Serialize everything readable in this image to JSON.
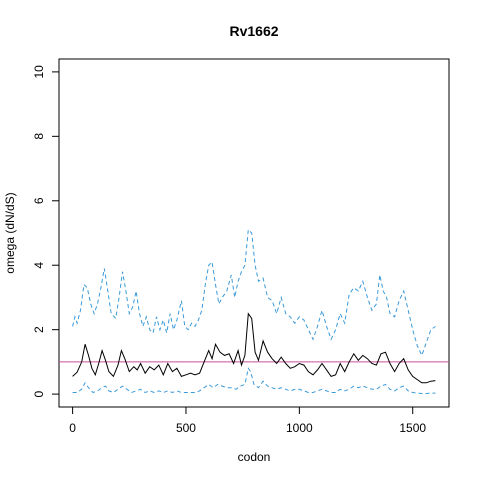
{
  "chart_data": {
    "type": "line",
    "title": "Rv1662",
    "xlabel": "codon",
    "ylabel": "omega (dN/dS)",
    "xlim": [
      -60,
      1660
    ],
    "ylim": [
      -0.4,
      10.4
    ],
    "x_ticks": [
      0,
      500,
      1000,
      1500
    ],
    "y_ticks": [
      0,
      2,
      4,
      6,
      8,
      10
    ],
    "grid": false,
    "reference_line": {
      "y": 1,
      "color": "#c8509b"
    },
    "series": [
      {
        "style": "solid",
        "color": "#000000",
        "points": [
          [
            0,
            0.55
          ],
          [
            20,
            0.68
          ],
          [
            40,
            1.0
          ],
          [
            55,
            1.55
          ],
          [
            70,
            1.2
          ],
          [
            85,
            0.8
          ],
          [
            100,
            0.6
          ],
          [
            115,
            0.95
          ],
          [
            130,
            1.35
          ],
          [
            145,
            1.05
          ],
          [
            160,
            0.7
          ],
          [
            180,
            0.55
          ],
          [
            200,
            0.9
          ],
          [
            215,
            1.35
          ],
          [
            230,
            1.1
          ],
          [
            250,
            0.7
          ],
          [
            270,
            0.85
          ],
          [
            285,
            0.75
          ],
          [
            300,
            0.95
          ],
          [
            320,
            0.65
          ],
          [
            340,
            0.85
          ],
          [
            360,
            0.75
          ],
          [
            380,
            0.9
          ],
          [
            400,
            0.6
          ],
          [
            420,
            0.95
          ],
          [
            440,
            0.7
          ],
          [
            460,
            0.8
          ],
          [
            480,
            0.55
          ],
          [
            500,
            0.6
          ],
          [
            520,
            0.65
          ],
          [
            540,
            0.6
          ],
          [
            560,
            0.65
          ],
          [
            580,
            1.0
          ],
          [
            600,
            1.35
          ],
          [
            615,
            1.1
          ],
          [
            630,
            1.55
          ],
          [
            650,
            1.3
          ],
          [
            670,
            1.2
          ],
          [
            690,
            1.25
          ],
          [
            710,
            0.95
          ],
          [
            730,
            1.35
          ],
          [
            745,
            0.9
          ],
          [
            760,
            1.2
          ],
          [
            775,
            2.5
          ],
          [
            790,
            2.35
          ],
          [
            805,
            1.3
          ],
          [
            820,
            1.05
          ],
          [
            840,
            1.65
          ],
          [
            860,
            1.3
          ],
          [
            880,
            1.1
          ],
          [
            900,
            0.95
          ],
          [
            920,
            1.15
          ],
          [
            940,
            0.95
          ],
          [
            960,
            0.8
          ],
          [
            980,
            0.85
          ],
          [
            1000,
            0.95
          ],
          [
            1020,
            0.9
          ],
          [
            1040,
            0.7
          ],
          [
            1060,
            0.6
          ],
          [
            1080,
            0.75
          ],
          [
            1100,
            0.95
          ],
          [
            1120,
            0.75
          ],
          [
            1140,
            0.55
          ],
          [
            1160,
            0.6
          ],
          [
            1180,
            0.95
          ],
          [
            1200,
            0.7
          ],
          [
            1220,
            1.0
          ],
          [
            1240,
            1.25
          ],
          [
            1260,
            1.05
          ],
          [
            1280,
            1.2
          ],
          [
            1300,
            1.1
          ],
          [
            1320,
            0.95
          ],
          [
            1340,
            0.9
          ],
          [
            1360,
            1.25
          ],
          [
            1380,
            1.3
          ],
          [
            1400,
            0.95
          ],
          [
            1420,
            0.7
          ],
          [
            1440,
            0.95
          ],
          [
            1460,
            1.1
          ],
          [
            1480,
            0.75
          ],
          [
            1500,
            0.55
          ],
          [
            1520,
            0.45
          ],
          [
            1540,
            0.35
          ],
          [
            1560,
            0.35
          ],
          [
            1580,
            0.4
          ],
          [
            1600,
            0.42
          ]
        ]
      },
      {
        "style": "dashed",
        "color": "#3a9ad9",
        "points": [
          [
            0,
            2.1
          ],
          [
            10,
            2.4
          ],
          [
            20,
            2.2
          ],
          [
            35,
            2.6
          ],
          [
            50,
            3.4
          ],
          [
            65,
            3.3
          ],
          [
            80,
            2.8
          ],
          [
            95,
            2.5
          ],
          [
            110,
            2.8
          ],
          [
            125,
            3.3
          ],
          [
            140,
            3.9
          ],
          [
            155,
            3.2
          ],
          [
            170,
            2.5
          ],
          [
            190,
            2.35
          ],
          [
            205,
            3.0
          ],
          [
            220,
            3.8
          ],
          [
            235,
            3.2
          ],
          [
            250,
            2.5
          ],
          [
            265,
            2.7
          ],
          [
            280,
            3.2
          ],
          [
            295,
            2.5
          ],
          [
            310,
            2.1
          ],
          [
            325,
            2.4
          ],
          [
            340,
            2.0
          ],
          [
            355,
            1.9
          ],
          [
            370,
            2.4
          ],
          [
            385,
            2.0
          ],
          [
            400,
            2.3
          ],
          [
            415,
            1.9
          ],
          [
            430,
            2.5
          ],
          [
            445,
            2.0
          ],
          [
            460,
            2.3
          ],
          [
            480,
            2.9
          ],
          [
            495,
            2.1
          ],
          [
            510,
            2.0
          ],
          [
            525,
            2.2
          ],
          [
            540,
            2.1
          ],
          [
            555,
            2.3
          ],
          [
            570,
            2.6
          ],
          [
            585,
            3.4
          ],
          [
            600,
            4.0
          ],
          [
            615,
            4.1
          ],
          [
            630,
            3.4
          ],
          [
            645,
            2.8
          ],
          [
            660,
            3.0
          ],
          [
            680,
            3.2
          ],
          [
            700,
            3.7
          ],
          [
            715,
            3.0
          ],
          [
            730,
            3.5
          ],
          [
            745,
            3.8
          ],
          [
            760,
            4.0
          ],
          [
            775,
            5.1
          ],
          [
            790,
            5.0
          ],
          [
            805,
            4.0
          ],
          [
            820,
            3.5
          ],
          [
            840,
            3.6
          ],
          [
            860,
            3.0
          ],
          [
            880,
            2.9
          ],
          [
            900,
            2.5
          ],
          [
            920,
            3.0
          ],
          [
            940,
            2.5
          ],
          [
            960,
            2.4
          ],
          [
            980,
            2.2
          ],
          [
            1000,
            2.4
          ],
          [
            1020,
            2.3
          ],
          [
            1040,
            2.0
          ],
          [
            1060,
            1.7
          ],
          [
            1080,
            2.1
          ],
          [
            1100,
            2.6
          ],
          [
            1120,
            2.1
          ],
          [
            1140,
            1.7
          ],
          [
            1160,
            2.0
          ],
          [
            1180,
            2.5
          ],
          [
            1200,
            2.2
          ],
          [
            1220,
            3.1
          ],
          [
            1240,
            3.3
          ],
          [
            1260,
            3.2
          ],
          [
            1280,
            3.5
          ],
          [
            1300,
            3.0
          ],
          [
            1320,
            2.6
          ],
          [
            1340,
            2.8
          ],
          [
            1355,
            3.7
          ],
          [
            1370,
            3.2
          ],
          [
            1385,
            3.0
          ],
          [
            1400,
            2.5
          ],
          [
            1420,
            2.4
          ],
          [
            1440,
            2.9
          ],
          [
            1460,
            3.2
          ],
          [
            1480,
            2.6
          ],
          [
            1500,
            2.0
          ],
          [
            1520,
            1.5
          ],
          [
            1540,
            1.2
          ],
          [
            1560,
            1.6
          ],
          [
            1580,
            2.0
          ],
          [
            1600,
            2.1
          ]
        ]
      },
      {
        "style": "dashed",
        "color": "#3a9ad9",
        "points": [
          [
            0,
            0.05
          ],
          [
            20,
            0.05
          ],
          [
            40,
            0.15
          ],
          [
            55,
            0.35
          ],
          [
            70,
            0.2
          ],
          [
            90,
            0.05
          ],
          [
            110,
            0.1
          ],
          [
            130,
            0.2
          ],
          [
            145,
            0.25
          ],
          [
            160,
            0.1
          ],
          [
            180,
            0.05
          ],
          [
            200,
            0.15
          ],
          [
            220,
            0.25
          ],
          [
            240,
            0.15
          ],
          [
            260,
            0.05
          ],
          [
            280,
            0.1
          ],
          [
            300,
            0.15
          ],
          [
            320,
            0.05
          ],
          [
            340,
            0.1
          ],
          [
            360,
            0.05
          ],
          [
            380,
            0.1
          ],
          [
            400,
            0.05
          ],
          [
            420,
            0.1
          ],
          [
            440,
            0.05
          ],
          [
            460,
            0.1
          ],
          [
            480,
            0.05
          ],
          [
            500,
            0.05
          ],
          [
            520,
            0.05
          ],
          [
            540,
            0.05
          ],
          [
            560,
            0.1
          ],
          [
            580,
            0.2
          ],
          [
            600,
            0.3
          ],
          [
            620,
            0.2
          ],
          [
            640,
            0.3
          ],
          [
            660,
            0.25
          ],
          [
            680,
            0.2
          ],
          [
            700,
            0.2
          ],
          [
            720,
            0.15
          ],
          [
            740,
            0.25
          ],
          [
            760,
            0.3
          ],
          [
            775,
            0.8
          ],
          [
            785,
            0.7
          ],
          [
            800,
            0.3
          ],
          [
            820,
            0.2
          ],
          [
            840,
            0.4
          ],
          [
            860,
            0.25
          ],
          [
            880,
            0.2
          ],
          [
            900,
            0.15
          ],
          [
            920,
            0.2
          ],
          [
            940,
            0.15
          ],
          [
            960,
            0.1
          ],
          [
            980,
            0.15
          ],
          [
            1000,
            0.15
          ],
          [
            1020,
            0.1
          ],
          [
            1040,
            0.05
          ],
          [
            1060,
            0.05
          ],
          [
            1080,
            0.1
          ],
          [
            1100,
            0.15
          ],
          [
            1120,
            0.1
          ],
          [
            1140,
            0.05
          ],
          [
            1160,
            0.05
          ],
          [
            1180,
            0.15
          ],
          [
            1200,
            0.1
          ],
          [
            1220,
            0.15
          ],
          [
            1240,
            0.25
          ],
          [
            1260,
            0.2
          ],
          [
            1280,
            0.25
          ],
          [
            1300,
            0.2
          ],
          [
            1320,
            0.15
          ],
          [
            1340,
            0.15
          ],
          [
            1360,
            0.25
          ],
          [
            1380,
            0.3
          ],
          [
            1400,
            0.15
          ],
          [
            1420,
            0.1
          ],
          [
            1440,
            0.2
          ],
          [
            1460,
            0.25
          ],
          [
            1480,
            0.1
          ],
          [
            1500,
            0.05
          ],
          [
            1520,
            0.03
          ],
          [
            1540,
            0.02
          ],
          [
            1560,
            0.02
          ],
          [
            1580,
            0.03
          ],
          [
            1600,
            0.03
          ]
        ]
      }
    ]
  }
}
